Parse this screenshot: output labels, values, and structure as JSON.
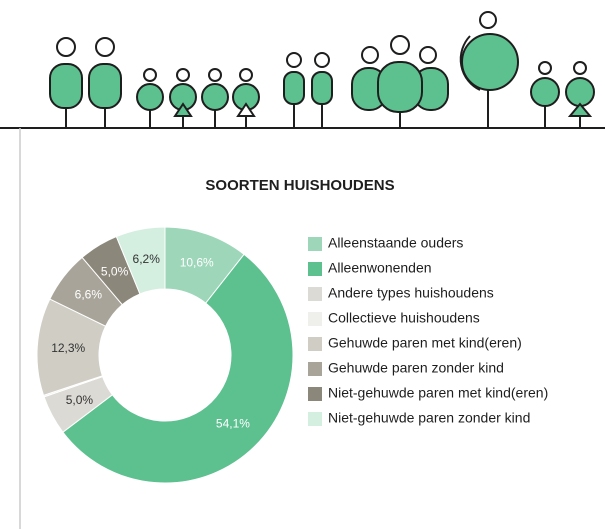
{
  "chart_data": {
    "type": "donut",
    "title": "SOORTEN HUISHOUDENS",
    "categories": [
      "Alleenstaande ouders",
      "Alleenwonenden",
      "Andere types huishoudens",
      "Collectieve huishoudens",
      "Gehuwde paren met kind(eren)",
      "Gehuwde paren zonder kind",
      "Niet-gehuwde paren met kind(eren)",
      "Niet-gehuwde paren zonder kind"
    ],
    "values": [
      10.6,
      54.1,
      5.0,
      0.2,
      12.3,
      6.6,
      5.0,
      6.2
    ],
    "value_labels": [
      "10,6%",
      "54,1%",
      "5,0%",
      null,
      "12,3%",
      "6,6%",
      "5,0%",
      "6,2%"
    ],
    "colors": [
      "#9dd6b8",
      "#5cc08f",
      "#dcdad4",
      "#efefec",
      "#d0cdc5",
      "#a8a499",
      "#8c877b",
      "#d4eee0"
    ]
  }
}
